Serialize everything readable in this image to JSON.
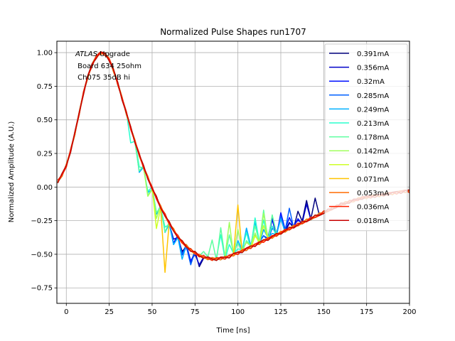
{
  "chart_data": {
    "type": "line",
    "title": "Normalized Pulse Shapes run1707",
    "xlabel": "Time [ns]",
    "ylabel": "Normalized Amplitude (A.U.)",
    "xlim": [
      -5.5,
      200
    ],
    "ylim": [
      -0.865,
      1.085
    ],
    "xticks": [
      0,
      25,
      50,
      75,
      100,
      125,
      150,
      175,
      200
    ],
    "xtick_labels": [
      "0",
      "25",
      "50",
      "75",
      "100",
      "125",
      "150",
      "175",
      "200"
    ],
    "yticks": [
      -0.75,
      -0.5,
      -0.25,
      0.0,
      0.25,
      0.5,
      0.75,
      1.0
    ],
    "ytick_labels": [
      "−0.75",
      "−0.50",
      "−0.25",
      "0.00",
      "0.25",
      "0.50",
      "0.75",
      "1.00"
    ],
    "grid": true,
    "legend_position": "top-right",
    "annotation": {
      "italic": "ATLAS",
      "line1_rest": " Upgrade",
      "line2": " Board 634 25ohm",
      "line3": " Ch075 35dB hi"
    },
    "x": [
      -5,
      -2.5,
      0,
      2.5,
      5,
      7.5,
      10,
      12.5,
      15,
      17.5,
      20,
      22.5,
      25,
      27.5,
      30,
      32.5,
      35,
      37.5,
      40,
      42.5,
      45,
      47.5,
      50,
      52.5,
      55,
      57.5,
      60,
      62.5,
      65,
      67.5,
      70,
      72.5,
      75,
      77.5,
      80,
      82.5,
      85,
      87.5,
      90,
      92.5,
      95,
      97.5,
      100,
      102.5,
      105,
      107.5,
      110,
      112.5,
      115,
      117.5,
      120,
      122.5,
      125,
      127.5,
      130,
      132.5,
      135,
      137.5,
      140,
      142.5,
      145,
      147.5,
      150,
      152.5,
      155,
      157.5,
      160,
      162.5,
      165,
      167.5,
      170,
      172.5,
      175,
      177.5,
      180,
      182.5,
      185,
      187.5,
      190,
      192.5,
      195,
      197.5,
      200
    ],
    "base": [
      0.04,
      0.09,
      0.16,
      0.27,
      0.4,
      0.55,
      0.7,
      0.82,
      0.91,
      0.97,
      1.0,
      0.99,
      0.95,
      0.87,
      0.77,
      0.66,
      0.55,
      0.44,
      0.34,
      0.24,
      0.15,
      0.07,
      -0.01,
      -0.08,
      -0.15,
      -0.21,
      -0.27,
      -0.32,
      -0.37,
      -0.41,
      -0.44,
      -0.47,
      -0.49,
      -0.51,
      -0.52,
      -0.53,
      -0.535,
      -0.535,
      -0.53,
      -0.525,
      -0.515,
      -0.5,
      -0.49,
      -0.475,
      -0.46,
      -0.445,
      -0.43,
      -0.415,
      -0.4,
      -0.385,
      -0.37,
      -0.355,
      -0.34,
      -0.325,
      -0.31,
      -0.295,
      -0.28,
      -0.265,
      -0.25,
      -0.235,
      -0.22,
      -0.205,
      -0.19,
      -0.175,
      -0.16,
      -0.145,
      -0.13,
      -0.12,
      -0.11,
      -0.1,
      -0.09,
      -0.08,
      -0.075,
      -0.07,
      -0.065,
      -0.06,
      -0.055,
      -0.05,
      -0.045,
      -0.04,
      -0.035,
      -0.03,
      -0.03
    ],
    "series": [
      {
        "name": "0.391mA",
        "color": "#00007f",
        "burst": [
          128,
          146
        ],
        "burst_amp": 0.16,
        "dip": [
          64,
          80
        ],
        "dip_amp": -0.08
      },
      {
        "name": "0.356mA",
        "color": "#0000c8",
        "burst": [
          120,
          142
        ],
        "burst_amp": 0.15,
        "dip": [
          62,
          78
        ],
        "dip_amp": -0.08
      },
      {
        "name": "0.32mA",
        "color": "#0010ff",
        "burst": [
          112,
          138
        ],
        "burst_amp": 0.15,
        "dip": [
          60,
          76
        ],
        "dip_amp": -0.09
      },
      {
        "name": "0.285mA",
        "color": "#0060ff",
        "burst": [
          105,
          133
        ],
        "burst_amp": 0.15,
        "dip": [
          58,
          75
        ],
        "dip_amp": -0.1
      },
      {
        "name": "0.249mA",
        "color": "#00b0ff",
        "burst": [
          96,
          128
        ],
        "burst_amp": 0.18,
        "dip": [
          38,
          72
        ],
        "dip_amp": -0.12
      },
      {
        "name": "0.213mA",
        "color": "#28ffce",
        "burst": [
          88,
          124
        ],
        "burst_amp": 0.2,
        "dip": [
          36,
          62
        ],
        "dip_amp": -0.1
      },
      {
        "name": "0.178mA",
        "color": "#5effa0",
        "burst": [
          80,
          120
        ],
        "burst_amp": 0.22,
        "dip": [
          40,
          60
        ],
        "dip_amp": -0.12
      },
      {
        "name": "0.142mA",
        "color": "#a0ff5e",
        "burst": [
          95,
          118
        ],
        "burst_amp": 0.25,
        "dip": [
          44,
          56
        ],
        "dip_amp": -0.15
      },
      {
        "name": "0.107mA",
        "color": "#ceff28",
        "burst": [
          110,
          118
        ],
        "burst_amp": 0.3,
        "dip": [
          48,
          54
        ],
        "dip_amp": -0.22
      },
      {
        "name": "0.071mA",
        "color": "#ffc400",
        "burst": [
          96,
          100
        ],
        "burst_amp": 0.38,
        "dip": [
          56,
          60
        ],
        "dip_amp": -0.42
      },
      {
        "name": "0.053mA",
        "color": "#ff6c00",
        "burst": [
          0,
          0
        ],
        "burst_amp": 0,
        "dip": [
          0,
          0
        ],
        "dip_amp": 0
      },
      {
        "name": "0.036mA",
        "color": "#ff2000",
        "burst": [
          0,
          0
        ],
        "burst_amp": 0,
        "dip": [
          0,
          0
        ],
        "dip_amp": 0
      },
      {
        "name": "0.018mA",
        "color": "#c80000",
        "burst": [
          0,
          0
        ],
        "burst_amp": 0,
        "dip": [
          0,
          0
        ],
        "dip_amp": 0
      }
    ]
  }
}
